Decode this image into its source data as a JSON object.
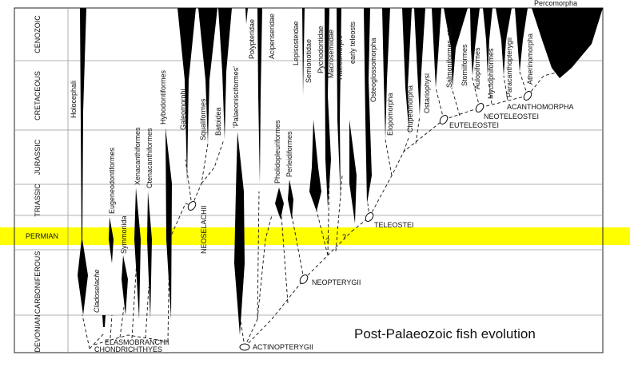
{
  "title": "Post-Palaeozoic fish evolution",
  "highlight_color": "#ffff00",
  "periods": [
    {
      "name": "CENOZOIC"
    },
    {
      "name": "CRETACEOUS"
    },
    {
      "name": "JURASSIC"
    },
    {
      "name": "TRIASSIC"
    },
    {
      "name": "PERMIAN",
      "highlighted": true
    },
    {
      "name": "CARBONIFEROUS"
    },
    {
      "name": "DEVONIAN"
    }
  ],
  "taxa": [
    "Holocephali",
    "Cladoselache",
    "Eugeneodontiformes",
    "Symmoriida",
    "Xenacanthiformes",
    "Ctenacanthiformes",
    "Hybodontiformes",
    "Galeomorphi",
    "Squaliformes",
    "Batoidea",
    "'Palaeonisciformes'",
    "Polypteridae",
    "Acipenseridae",
    "Pholidopleuriformes",
    "Perleidiformes",
    "Lepisosteidae",
    "Semionotidae",
    "Pycnodontidae",
    "Macrosemiidae",
    "Halecomorphi",
    "early teleosts",
    "Osteoglossomorpha",
    "Elopomorpha",
    "Clupeomorpha",
    "Ostariophysi",
    "Salmoniformes, etc.",
    "Stomiiformes",
    "Aulopiformes",
    "Myctophiformes",
    "Paracanthopterygii",
    "Atherinomorpha",
    "Percomorpha"
  ],
  "clades": [
    "ELASMOBRANCHII",
    "CHONDRICHTHYES",
    "NEOSELACHII",
    "ACTINOPTERYGII",
    "NEOPTERYGII",
    "TELEOSTEI",
    "EUTELEOSTEI",
    "NEOTELEOSTEI",
    "ACANTHOMORPHA"
  ],
  "question_marks": [
    "?",
    "?"
  ]
}
